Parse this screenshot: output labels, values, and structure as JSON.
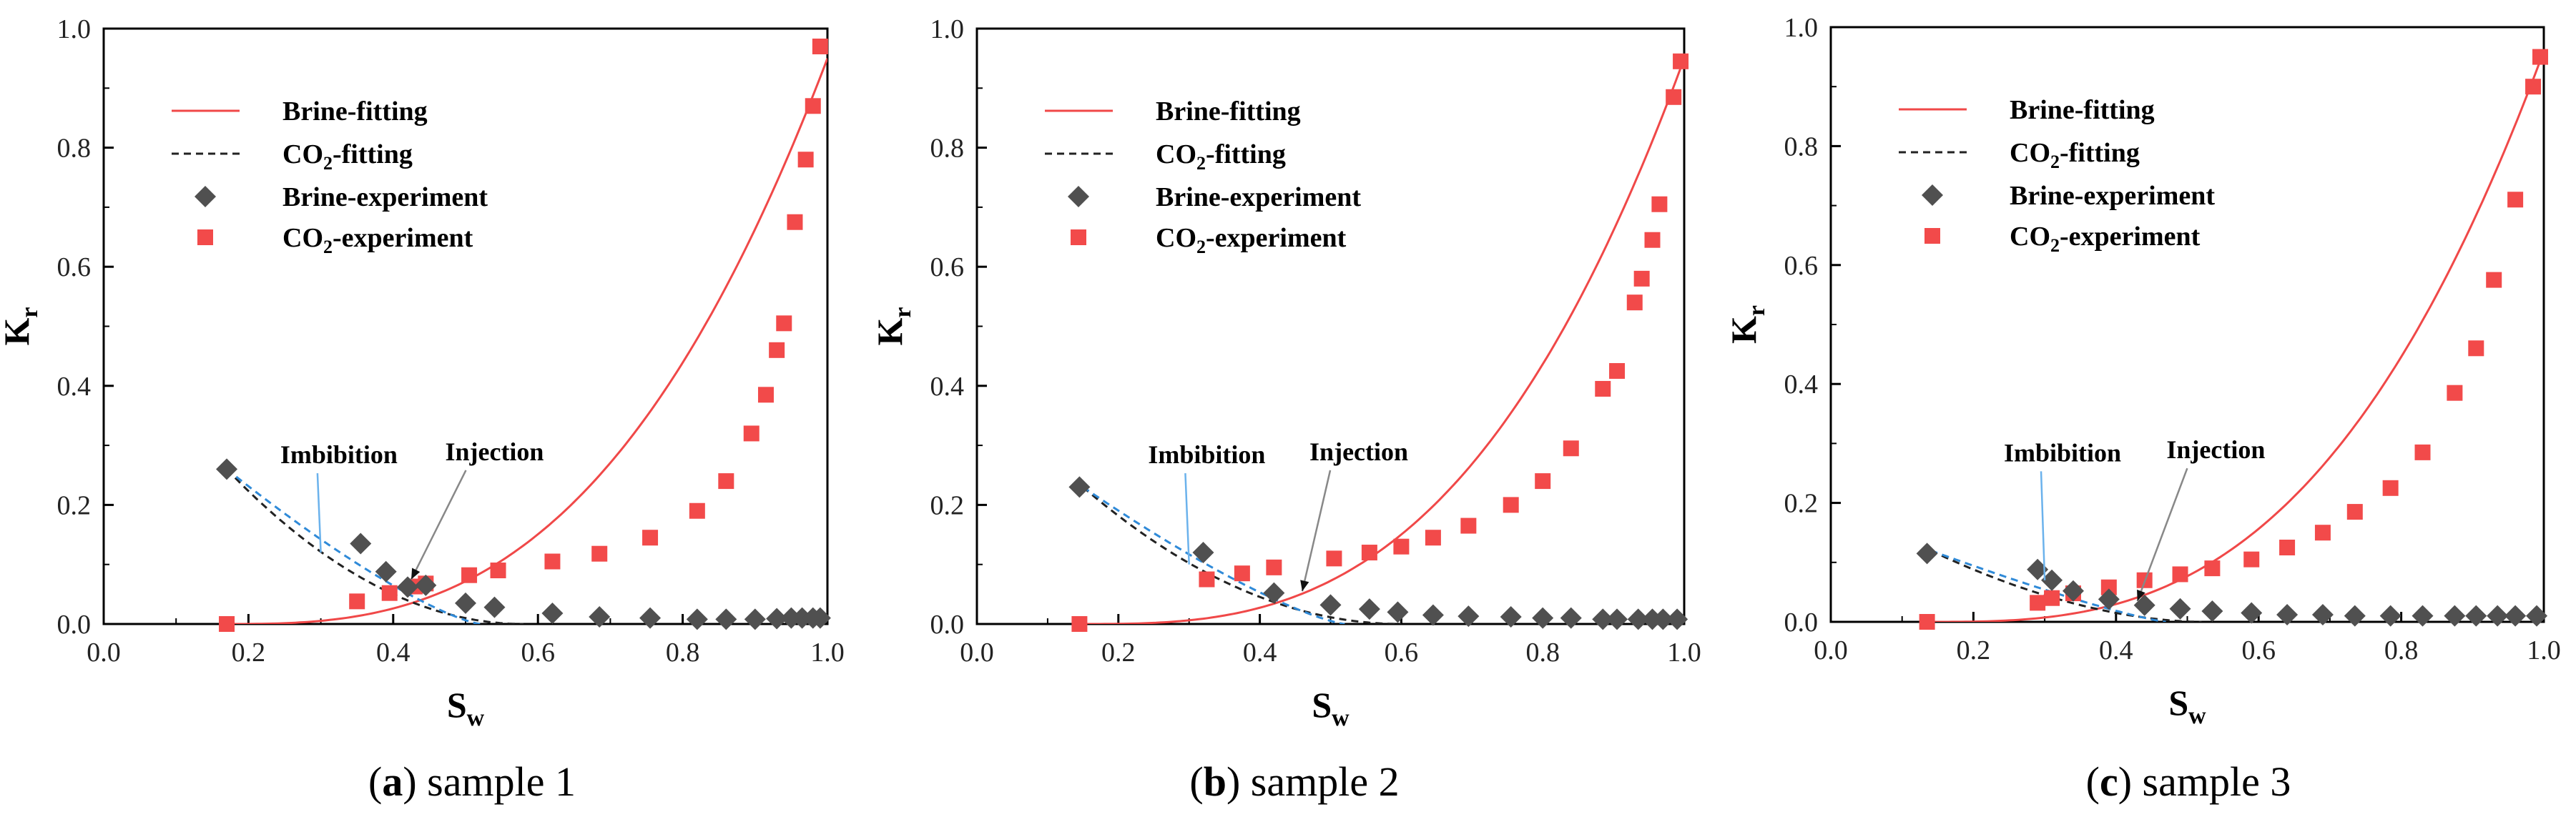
{
  "colors": {
    "brine_fit": "#f04848",
    "co2_fit": "#222222",
    "brine_exp": "#505050",
    "co2_exp": "#f24a4a",
    "imbibition_dash": "#2f8ad8",
    "imbibition_leader": "#6bb2ec",
    "injection_leader": "#888888",
    "axis": "#000000"
  },
  "legend": {
    "brine_fitting": "Brine-fitting",
    "co2_fitting_prefix": "CO",
    "co2_fitting_sub": "2",
    "co2_fitting_suffix": "-fitting",
    "brine_experiment": "Brine-experiment",
    "co2_experiment_prefix": "CO",
    "co2_experiment_sub": "2",
    "co2_experiment_suffix": "-experiment"
  },
  "axes": {
    "xlabel_main": "S",
    "xlabel_sub": "w",
    "ylabel_main": "K",
    "ylabel_sub": "r",
    "xticks": [
      "0.0",
      "0.2",
      "0.4",
      "0.6",
      "0.8",
      "1.0"
    ],
    "yticks": [
      "0.0",
      "0.2",
      "0.4",
      "0.6",
      "0.8",
      "1.0"
    ]
  },
  "annotations": {
    "imbibition": "Imbibition",
    "injection": "Injection"
  },
  "chart_data": [
    {
      "type": "scatter",
      "caption_letter": "a",
      "caption_rest": ") sample 1",
      "xlim": [
        0,
        1
      ],
      "ylim": [
        0,
        1
      ],
      "xlabel": "Sw",
      "ylabel": "Kr",
      "brine_fit": {
        "swr": 0.17,
        "scale": 0.95,
        "exp": 2.8
      },
      "co2_fit": {
        "a": 0.26,
        "swr": 0.17,
        "end": 0.58,
        "exp": 2.0
      },
      "imbibition": {
        "a": 0.26,
        "swr": 0.17,
        "end": 0.52,
        "exp": 1.3
      },
      "annotation_targets": {
        "imbibition": [
          0.3,
          0.12
        ],
        "injection": [
          0.425,
          0.075
        ]
      },
      "series": [
        {
          "name": "Brine-experiment",
          "x": [
            0.17,
            0.355,
            0.39,
            0.42,
            0.445,
            0.5,
            0.54,
            0.62,
            0.685,
            0.755,
            0.82,
            0.86,
            0.9,
            0.93,
            0.95,
            0.965,
            0.98,
            0.99
          ],
          "y": [
            0.26,
            0.135,
            0.088,
            0.062,
            0.065,
            0.035,
            0.028,
            0.018,
            0.012,
            0.01,
            0.008,
            0.008,
            0.008,
            0.009,
            0.01,
            0.01,
            0.01,
            0.01
          ]
        },
        {
          "name": "CO2-experiment",
          "x": [
            0.17,
            0.35,
            0.395,
            0.43,
            0.445,
            0.505,
            0.545,
            0.62,
            0.685,
            0.755,
            0.82,
            0.86,
            0.895,
            0.915,
            0.93,
            0.94,
            0.955,
            0.97,
            0.98,
            0.99
          ],
          "y": [
            0.0,
            0.038,
            0.052,
            0.063,
            0.068,
            0.082,
            0.09,
            0.105,
            0.118,
            0.145,
            0.19,
            0.24,
            0.32,
            0.385,
            0.46,
            0.505,
            0.675,
            0.78,
            0.87,
            0.97
          ]
        }
      ]
    },
    {
      "type": "scatter",
      "caption_letter": "b",
      "caption_rest": ") sample 2",
      "xlim": [
        0,
        1
      ],
      "ylim": [
        0,
        1
      ],
      "xlabel": "Sw",
      "ylabel": "Kr",
      "brine_fit": {
        "swr": 0.15,
        "scale": 0.95,
        "exp": 2.9
      },
      "co2_fit": {
        "a": 0.23,
        "swr": 0.15,
        "end": 0.6,
        "exp": 2.0
      },
      "imbibition": {
        "a": 0.23,
        "swr": 0.15,
        "end": 0.52,
        "exp": 1.3
      },
      "annotation_targets": {
        "imbibition": [
          0.3,
          0.1
        ],
        "injection": [
          0.46,
          0.055
        ]
      },
      "series": [
        {
          "name": "Brine-experiment",
          "x": [
            0.145,
            0.32,
            0.42,
            0.5,
            0.555,
            0.595,
            0.645,
            0.695,
            0.755,
            0.8,
            0.84,
            0.885,
            0.905,
            0.935,
            0.955,
            0.97,
            0.99
          ],
          "y": [
            0.23,
            0.12,
            0.052,
            0.032,
            0.025,
            0.02,
            0.015,
            0.013,
            0.012,
            0.01,
            0.01,
            0.008,
            0.008,
            0.008,
            0.008,
            0.008,
            0.008
          ]
        },
        {
          "name": "CO2-experiment",
          "x": [
            0.145,
            0.325,
            0.375,
            0.42,
            0.505,
            0.555,
            0.6,
            0.645,
            0.695,
            0.755,
            0.8,
            0.84,
            0.885,
            0.905,
            0.93,
            0.94,
            0.955,
            0.965,
            0.985,
            0.995
          ],
          "y": [
            0.0,
            0.075,
            0.085,
            0.095,
            0.11,
            0.12,
            0.13,
            0.145,
            0.165,
            0.2,
            0.24,
            0.295,
            0.395,
            0.425,
            0.54,
            0.58,
            0.645,
            0.705,
            0.885,
            0.945
          ]
        }
      ]
    },
    {
      "type": "scatter",
      "caption_letter": "c",
      "caption_rest": ") sample 3",
      "xlim": [
        0,
        1
      ],
      "ylim": [
        0,
        1
      ],
      "xlabel": "Sw",
      "ylabel": "Kr",
      "brine_fit": {
        "swr": 0.14,
        "scale": 0.96,
        "exp": 2.9
      },
      "co2_fit": {
        "a": 0.12,
        "swr": 0.14,
        "end": 0.52,
        "exp": 1.8
      },
      "imbibition": {
        "a": 0.12,
        "swr": 0.14,
        "end": 0.47,
        "exp": 1.2
      },
      "annotation_targets": {
        "imbibition": [
          0.3,
          0.07
        ],
        "injection": [
          0.43,
          0.035
        ]
      },
      "series": [
        {
          "name": "Brine-experiment",
          "x": [
            0.135,
            0.29,
            0.31,
            0.34,
            0.39,
            0.44,
            0.49,
            0.535,
            0.59,
            0.64,
            0.69,
            0.735,
            0.785,
            0.83,
            0.875,
            0.905,
            0.935,
            0.96,
            0.99
          ],
          "y": [
            0.115,
            0.088,
            0.07,
            0.052,
            0.038,
            0.028,
            0.022,
            0.018,
            0.015,
            0.012,
            0.012,
            0.01,
            0.01,
            0.01,
            0.01,
            0.01,
            0.01,
            0.01,
            0.01
          ]
        },
        {
          "name": "CO2-experiment",
          "x": [
            0.135,
            0.29,
            0.31,
            0.34,
            0.39,
            0.44,
            0.49,
            0.535,
            0.59,
            0.64,
            0.69,
            0.735,
            0.785,
            0.83,
            0.875,
            0.905,
            0.93,
            0.96,
            0.985,
            0.995
          ],
          "y": [
            0.0,
            0.032,
            0.04,
            0.048,
            0.058,
            0.07,
            0.08,
            0.09,
            0.105,
            0.125,
            0.15,
            0.185,
            0.225,
            0.285,
            0.385,
            0.46,
            0.575,
            0.71,
            0.9,
            0.95
          ]
        }
      ]
    }
  ]
}
